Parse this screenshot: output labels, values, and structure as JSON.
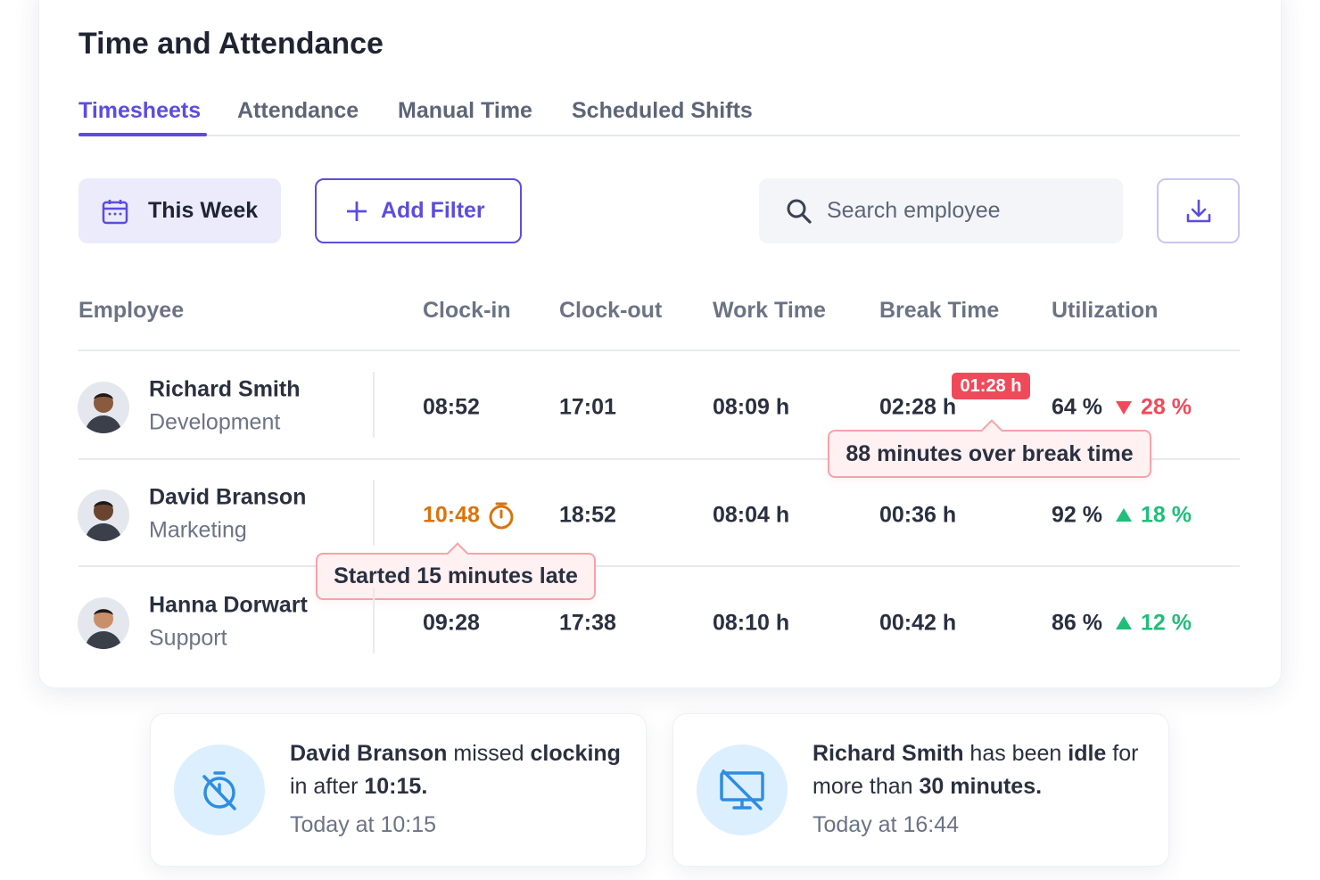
{
  "header": {
    "title": "Time and Attendance"
  },
  "tabs": {
    "items": [
      "Timesheets",
      "Attendance",
      "Manual Time",
      "Scheduled Shifts"
    ],
    "active": 0
  },
  "toolbar": {
    "date_range": "This Week",
    "add_filter": "Add Filter",
    "search_placeholder": "Search employee"
  },
  "table": {
    "columns": [
      "Employee",
      "Clock-in",
      "Clock-out",
      "Work Time",
      "Break Time",
      "Utilization"
    ],
    "rows": [
      {
        "name": "Richard Smith",
        "department": "Development",
        "clock_in": "08:52",
        "clock_out": "17:01",
        "work_time": "08:09 h",
        "break_time": "02:28 h",
        "utilization": "64 %",
        "change": "28 %",
        "trend": "down",
        "late": false
      },
      {
        "name": "David Branson",
        "department": "Marketing",
        "clock_in": "10:48",
        "clock_out": "18:52",
        "work_time": "08:04 h",
        "break_time": "00:36 h",
        "utilization": "92 %",
        "change": "18 %",
        "trend": "up",
        "late": true
      },
      {
        "name": "Hanna Dorwart",
        "department": "Support",
        "clock_in": "09:28",
        "clock_out": "17:38",
        "work_time": "08:10 h",
        "break_time": "00:42 h",
        "utilization": "86 %",
        "change": "12 %",
        "trend": "up",
        "late": false
      }
    ]
  },
  "badge": {
    "text": "01:28 h"
  },
  "tooltips": {
    "break": "88 minutes over break time",
    "late": "Started 15 minutes late"
  },
  "notifications": [
    {
      "parts": [
        {
          "text": "David Branson",
          "bold": true
        },
        {
          "text": " missed ",
          "bold": false
        },
        {
          "text": "clocking",
          "bold": true
        },
        {
          "text": " in after ",
          "bold": false
        },
        {
          "text": "10:15.",
          "bold": true
        }
      ],
      "time": "Today at 10:15"
    },
    {
      "parts": [
        {
          "text": "Richard Smith",
          "bold": true
        },
        {
          "text": " has been ",
          "bold": false
        },
        {
          "text": "idle",
          "bold": true
        },
        {
          "text": " for more than ",
          "bold": false
        },
        {
          "text": "30 minutes.",
          "bold": true
        }
      ],
      "time": "Today at 16:44"
    }
  ]
}
